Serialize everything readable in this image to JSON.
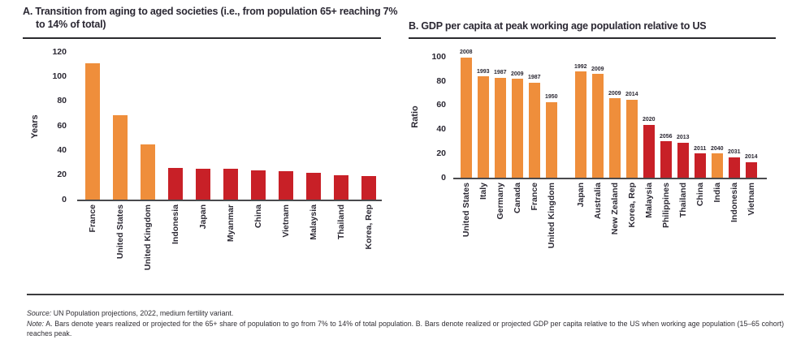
{
  "palette": {
    "orange": "#EF8E3B",
    "red": "#C82027",
    "ink": "#2B2833",
    "axis_line": "#4A4A4D"
  },
  "chart_data": [
    {
      "id": "A",
      "type": "bar",
      "title": "A. Transition from aging to aged societies (i.e., from population 65+ reaching 7% to 14% of total)",
      "xlabel": "",
      "ylabel": "Years",
      "ylim": [
        0,
        120
      ],
      "ytick_step": 20,
      "grid": false,
      "legend": "none",
      "categories": [
        "France",
        "United States",
        "United Kingdom",
        "Indonesia",
        "Japan",
        "Myanmar",
        "China",
        "Vietnam",
        "Malaysia",
        "Thailand",
        "Korea, Rep"
      ],
      "values": [
        111,
        69,
        45,
        26,
        25,
        25,
        24,
        23,
        22,
        20,
        19
      ],
      "colors": [
        "orange",
        "orange",
        "orange",
        "red",
        "red",
        "red",
        "red",
        "red",
        "red",
        "red",
        "red"
      ]
    },
    {
      "id": "B",
      "type": "bar",
      "title": "B. GDP per capita at peak working age population relative to US",
      "xlabel": "",
      "ylabel": "Ratio",
      "ylim": [
        0,
        100
      ],
      "ytick_step": 20,
      "grid": false,
      "legend": "none",
      "group_gap_after": "United Kingdom",
      "categories": [
        "United States",
        "Italy",
        "Germany",
        "Canada",
        "France",
        "United Kingdom",
        "Japan",
        "Australia",
        "New Zealand",
        "Korea, Rep",
        "Malaysia",
        "Philippines",
        "Thailand",
        "China",
        "India",
        "Indonesia",
        "Vietnam"
      ],
      "values": [
        100,
        84,
        83,
        82,
        79,
        63,
        88,
        86,
        66,
        65,
        44,
        30,
        29,
        20,
        20,
        17,
        13
      ],
      "bar_labels": [
        "2008",
        "1993",
        "1987",
        "2009",
        "1987",
        "1950",
        "1992",
        "2009",
        "2009",
        "2014",
        "2020",
        "2056",
        "2013",
        "2011",
        "2040",
        "2031",
        "2014"
      ],
      "colors": [
        "orange",
        "orange",
        "orange",
        "orange",
        "orange",
        "orange",
        "orange",
        "orange",
        "orange",
        "orange",
        "red",
        "red",
        "red",
        "red",
        "orange",
        "red",
        "red"
      ]
    }
  ],
  "footer": {
    "source_label": "Source:",
    "source_text": " UN Population projections, 2022, medium fertility variant.",
    "note_label": "Note:",
    "note_text": " A. Bars denote years realized or projected for the 65+ share of population to go from 7% to 14% of total population. B. Bars denote realized or projected GDP per capita relative to the US when working age population (15–65 cohort) reaches peak."
  }
}
